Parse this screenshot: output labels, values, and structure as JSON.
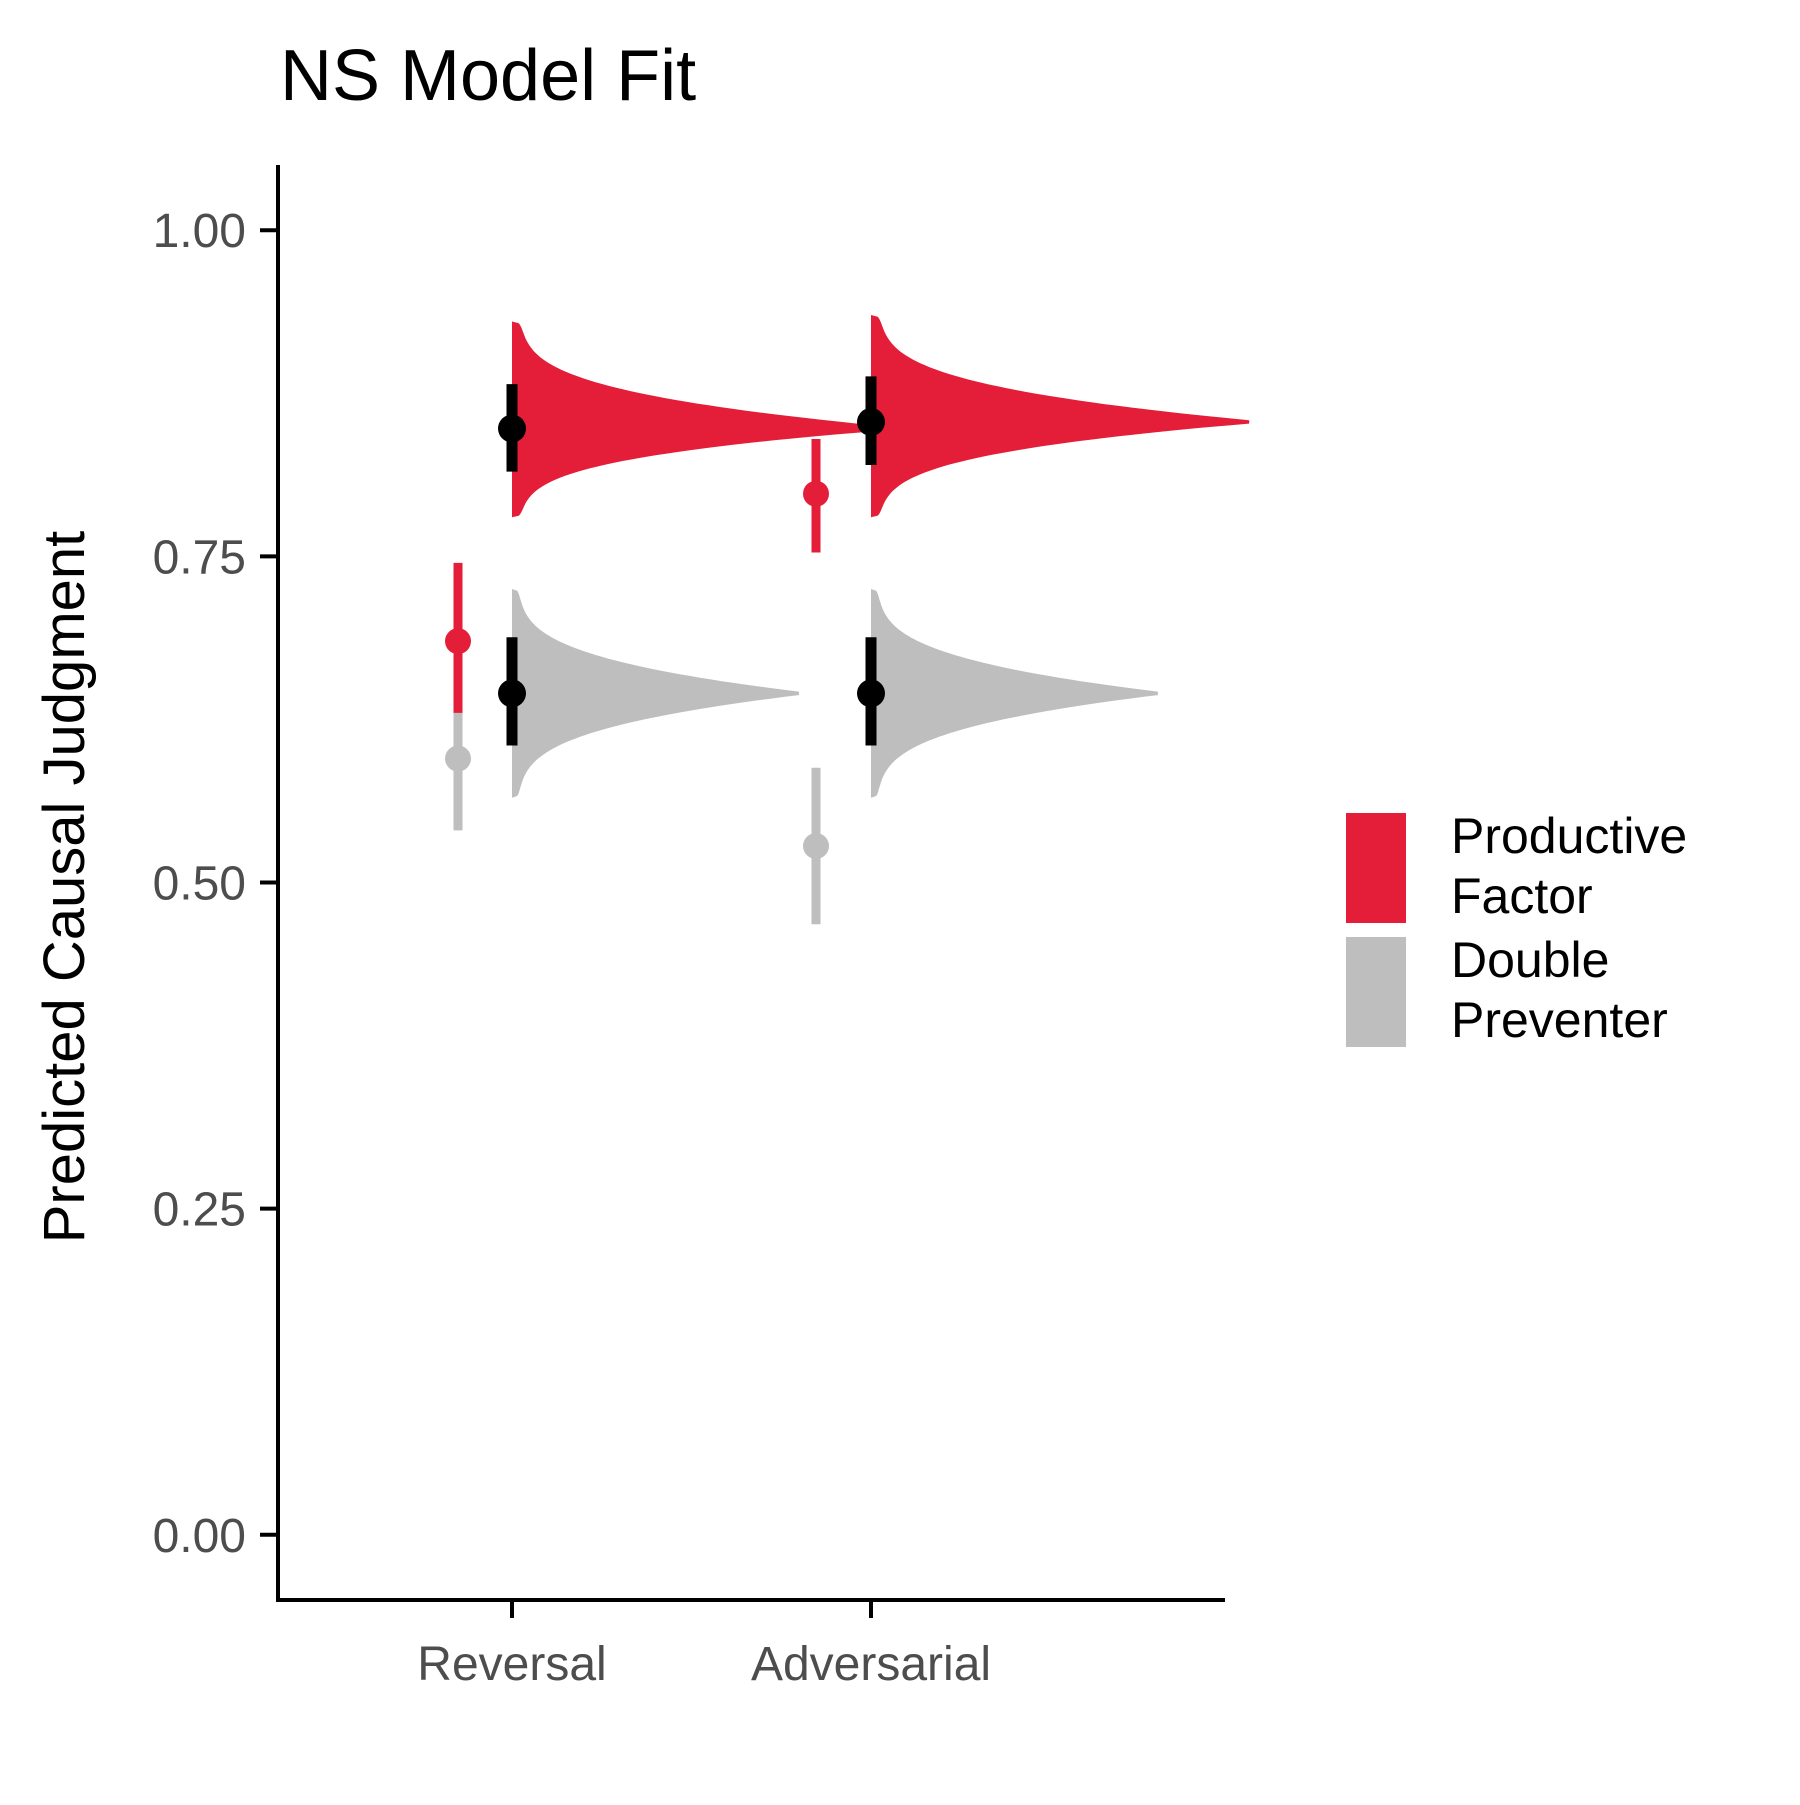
{
  "chart_data": {
    "type": "violin",
    "title": "NS Model Fit",
    "xlabel": "",
    "ylabel": "Predicted Causal Judgment",
    "ylim": [
      -0.05,
      1.05
    ],
    "yticks": [
      "0.00",
      "0.25",
      "0.50",
      "0.75",
      "1.00"
    ],
    "ytick_values": [
      0,
      0.25,
      0.5,
      0.75,
      1.0
    ],
    "categories": [
      "Reversal",
      "Adversarial"
    ],
    "grid": false,
    "legend_position": "right",
    "series": [
      {
        "name": "Productive Factor",
        "color": "#E41E38",
        "model_mean": [
          0.848,
          0.853
        ],
        "model_interval": [
          [
            0.815,
            0.882
          ],
          [
            0.82,
            0.888
          ]
        ],
        "model_density_range": [
          [
            0.78,
            0.93
          ],
          [
            0.78,
            0.935
          ]
        ],
        "model_density_peak_width": [
          0.29,
          0.29
        ],
        "observed_mean": [
          0.685,
          0.798
        ],
        "observed_interval": [
          [
            0.63,
            0.745
          ],
          [
            0.753,
            0.84
          ]
        ]
      },
      {
        "name": "Double Preventer",
        "color": "#BEBEBE",
        "model_mean": [
          0.645,
          0.645
        ],
        "model_interval": [
          [
            0.605,
            0.688
          ],
          [
            0.605,
            0.688
          ]
        ],
        "model_density_range": [
          [
            0.565,
            0.725
          ],
          [
            0.565,
            0.725
          ]
        ],
        "model_density_peak_width": [
          0.22,
          0.22
        ],
        "observed_mean": [
          0.595,
          0.528
        ],
        "observed_interval": [
          [
            0.54,
            0.65
          ],
          [
            0.468,
            0.588
          ]
        ]
      }
    ]
  },
  "legend": {
    "items": [
      {
        "line1": "Productive",
        "line2": "Factor",
        "color": "#E41E38"
      },
      {
        "line1": "Double",
        "line2": "Preventer",
        "color": "#BEBEBE"
      }
    ]
  },
  "colors": {
    "axis": "#000000",
    "tick_text": "#4d4d4d",
    "model_point": "#000000"
  }
}
